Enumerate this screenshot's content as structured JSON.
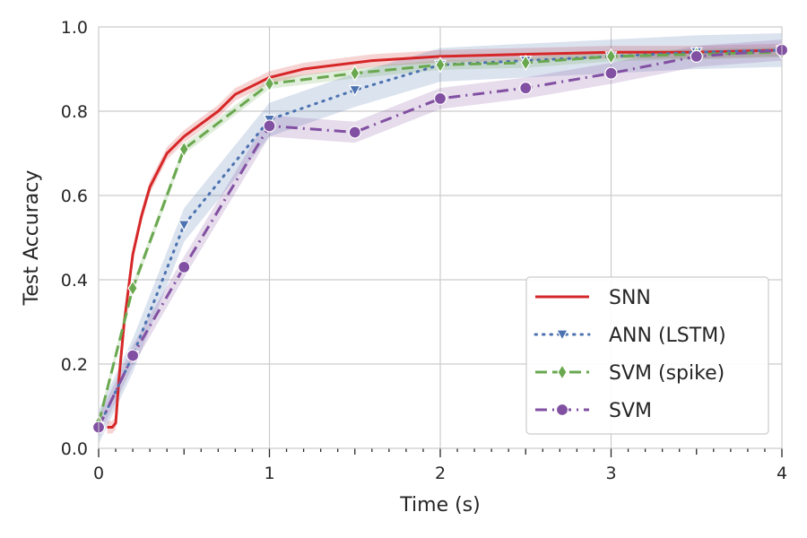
{
  "chart_data": {
    "type": "line",
    "xlabel": "Time (s)",
    "ylabel": "Test Accuracy",
    "xlim": [
      0,
      4
    ],
    "ylim": [
      0,
      1
    ],
    "x_ticks": [
      0,
      1,
      2,
      3,
      4
    ],
    "y_ticks": [
      0.0,
      0.2,
      0.4,
      0.6,
      0.8,
      1.0
    ],
    "x_tick_labels": [
      "0",
      "1",
      "2",
      "3",
      "4"
    ],
    "y_tick_labels": [
      "0.0",
      "0.2",
      "0.4",
      "0.6",
      "0.8",
      "1.0"
    ],
    "grid": true,
    "legend_position": "lower-right",
    "series": [
      {
        "name": "SNN",
        "color": "#d62728",
        "style": "solid",
        "marker": "none",
        "x": [
          0.05,
          0.08,
          0.1,
          0.12,
          0.15,
          0.2,
          0.25,
          0.3,
          0.35,
          0.4,
          0.45,
          0.5,
          0.6,
          0.7,
          0.8,
          0.9,
          1.0,
          1.2,
          1.4,
          1.6,
          1.8,
          2.0,
          2.5,
          3.0,
          3.5,
          4.0
        ],
        "y": [
          0.05,
          0.05,
          0.06,
          0.17,
          0.3,
          0.46,
          0.55,
          0.62,
          0.66,
          0.7,
          0.72,
          0.74,
          0.77,
          0.8,
          0.84,
          0.86,
          0.88,
          0.9,
          0.91,
          0.92,
          0.925,
          0.93,
          0.935,
          0.94,
          0.94,
          0.945
        ],
        "band": 0.015
      },
      {
        "name": "ANN (LSTM)",
        "color": "#4c72b0",
        "style": "dotted",
        "marker": "triangle-down",
        "x": [
          0.0,
          0.2,
          0.5,
          1.0,
          1.5,
          2.0,
          2.5,
          3.0,
          3.5,
          4.0
        ],
        "y": [
          0.05,
          0.22,
          0.53,
          0.78,
          0.85,
          0.91,
          0.92,
          0.93,
          0.94,
          0.945
        ],
        "band": 0.04
      },
      {
        "name": "SVM (spike)",
        "color": "#6aa84f",
        "style": "dashed",
        "marker": "diamond",
        "x": [
          0.0,
          0.2,
          0.5,
          1.0,
          1.5,
          2.0,
          2.5,
          3.0,
          3.5,
          4.0
        ],
        "y": [
          0.06,
          0.38,
          0.71,
          0.865,
          0.89,
          0.91,
          0.915,
          0.93,
          0.935,
          0.94
        ],
        "band": 0.012
      },
      {
        "name": "SVM",
        "color": "#8250a2",
        "style": "dashdot",
        "marker": "circle",
        "x": [
          0.0,
          0.2,
          0.5,
          1.0,
          1.5,
          2.0,
          2.5,
          3.0,
          3.5,
          4.0
        ],
        "y": [
          0.05,
          0.22,
          0.43,
          0.765,
          0.75,
          0.83,
          0.855,
          0.89,
          0.93,
          0.945
        ],
        "band": 0.025
      }
    ]
  }
}
